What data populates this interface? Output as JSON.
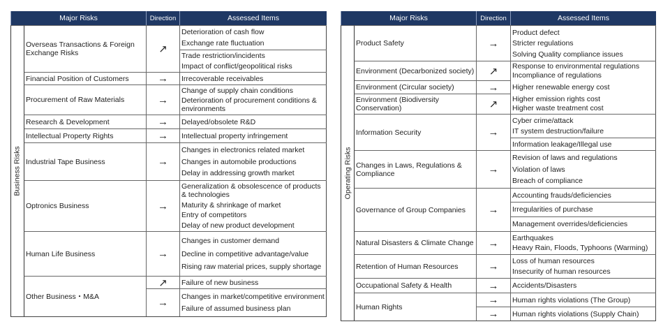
{
  "headers": {
    "major_risks": "Major Risks",
    "direction": "Direction",
    "assessed_items": "Assessed Items"
  },
  "tables": [
    {
      "category": "Business Risks",
      "rows": [
        {
          "risk": "Overseas Transactions & Foreign Exchange Risks",
          "groups": [
            {
              "direction": "↗",
              "item_cells": [
                [
                  "Deterioration of cash flow",
                  "Exchange rate fluctuation"
                ],
                [
                  "Trade restriction/incidents",
                  "Impact of conflict/geopolitical risks"
                ]
              ]
            }
          ]
        },
        {
          "risk": "Financial Position of Customers",
          "groups": [
            {
              "direction": "→",
              "item_cells": [
                [
                  "Irrecoverable receivables"
                ]
              ]
            }
          ]
        },
        {
          "risk": "Procurement of Raw Materials",
          "groups": [
            {
              "direction": "→",
              "item_cells": [
                [
                  "Change of supply chain conditions",
                  "Deterioration of procurement conditions & environments"
                ]
              ]
            }
          ]
        },
        {
          "risk": "Research & Development",
          "groups": [
            {
              "direction": "→",
              "item_cells": [
                [
                  "Delayed/obsolete R&D"
                ]
              ]
            }
          ]
        },
        {
          "risk": "Intellectual Property Rights",
          "groups": [
            {
              "direction": "→",
              "item_cells": [
                [
                  "Intellectual property infringement"
                ]
              ]
            }
          ]
        },
        {
          "risk": "Industrial Tape Business",
          "groups": [
            {
              "direction": "→",
              "item_cells": [
                [
                  "Changes in electronics related market",
                  "Changes in automobile productions",
                  "Delay in addressing growth market"
                ]
              ]
            }
          ]
        },
        {
          "risk": "Optronics Business",
          "groups": [
            {
              "direction": "→",
              "item_cells": [
                [
                  "Generalization & obsolescence of products & technologies",
                  "Maturity & shrinkage of market",
                  "Entry of competitors",
                  "Delay of new product development"
                ]
              ]
            }
          ]
        },
        {
          "risk": "Human Life Business",
          "groups": [
            {
              "direction": "→",
              "item_cells": [
                [
                  "Changes in customer demand",
                  "Decline in competitive advantage/value",
                  "Rising raw material prices, supply shortage"
                ]
              ]
            }
          ]
        },
        {
          "risk": "Other Business・M&A",
          "groups": [
            {
              "direction": "↗",
              "item_cells": [
                [
                  "Failure of new business"
                ]
              ]
            },
            {
              "direction": "→",
              "item_cells": [
                [
                  "Changes in market/competitive environment",
                  "Failure of assumed business plan"
                ]
              ]
            }
          ]
        }
      ]
    },
    {
      "category": "Operating Risks",
      "rows": [
        {
          "risk": "Product Safety",
          "groups": [
            {
              "direction": "→",
              "item_cells": [
                [
                  "Product defect",
                  "Stricter regulations",
                  "Solving Quality compliance issues"
                ]
              ]
            }
          ]
        },
        {
          "risk": "Environment (Decarbonized society)",
          "groups": [
            {
              "direction": "↗",
              "item_cells": [
                [
                  "Response to environmental regulations",
                  "Incompliance of regulations"
                ]
              ]
            }
          ]
        },
        {
          "risk": "Environment (Circular society)",
          "groups": [
            {
              "direction": "→",
              "item_cells": [
                [
                  "Higher renewable energy cost"
                ]
              ]
            }
          ]
        },
        {
          "risk": "Environment (Biodiversity Conservation)",
          "groups": [
            {
              "direction": "↗",
              "item_cells": [
                [
                  "Higher emission rights cost",
                  "Higher waste treatment cost"
                ]
              ]
            }
          ]
        },
        {
          "risk": "Information Security",
          "groups": [
            {
              "direction": "→",
              "item_cells": [
                [
                  "Cyber crime/attack",
                  "IT system destruction/failure"
                ],
                [
                  "Information leakage/Illegal use"
                ]
              ]
            }
          ]
        },
        {
          "risk": "Changes in Laws, Regulations & Compliance",
          "groups": [
            {
              "direction": "→",
              "item_cells": [
                [
                  "Revision of laws and regulations",
                  "Violation of laws",
                  "Breach of compliance"
                ]
              ]
            }
          ]
        },
        {
          "risk": "Governance of Group Companies",
          "groups": [
            {
              "direction": "→",
              "item_cells": [
                [
                  "Accounting frauds/deficiencies"
                ],
                [
                  "Irregularities of purchase"
                ],
                [
                  "Management overrides/deficiencies"
                ]
              ]
            }
          ]
        },
        {
          "risk": "Natural Disasters & Climate Change",
          "groups": [
            {
              "direction": "→",
              "item_cells": [
                [
                  "Earthquakes",
                  "Heavy Rain, Floods, Typhoons (Warming)"
                ]
              ]
            }
          ]
        },
        {
          "risk": "Retention of Human Resources",
          "groups": [
            {
              "direction": "→",
              "item_cells": [
                [
                  "Loss of human resources",
                  "Insecurity of human resources"
                ]
              ]
            }
          ]
        },
        {
          "risk": "Occupational Safety & Health",
          "groups": [
            {
              "direction": "→",
              "item_cells": [
                [
                  "Accidents/Disasters"
                ]
              ]
            }
          ]
        },
        {
          "risk": "Human Rights",
          "groups": [
            {
              "direction": "→",
              "item_cells": [
                [
                  "Human rights violations (The Group)"
                ]
              ]
            },
            {
              "direction": "→",
              "item_cells": [
                [
                  "Human rights violations (Supply Chain)"
                ]
              ]
            }
          ]
        }
      ]
    }
  ]
}
